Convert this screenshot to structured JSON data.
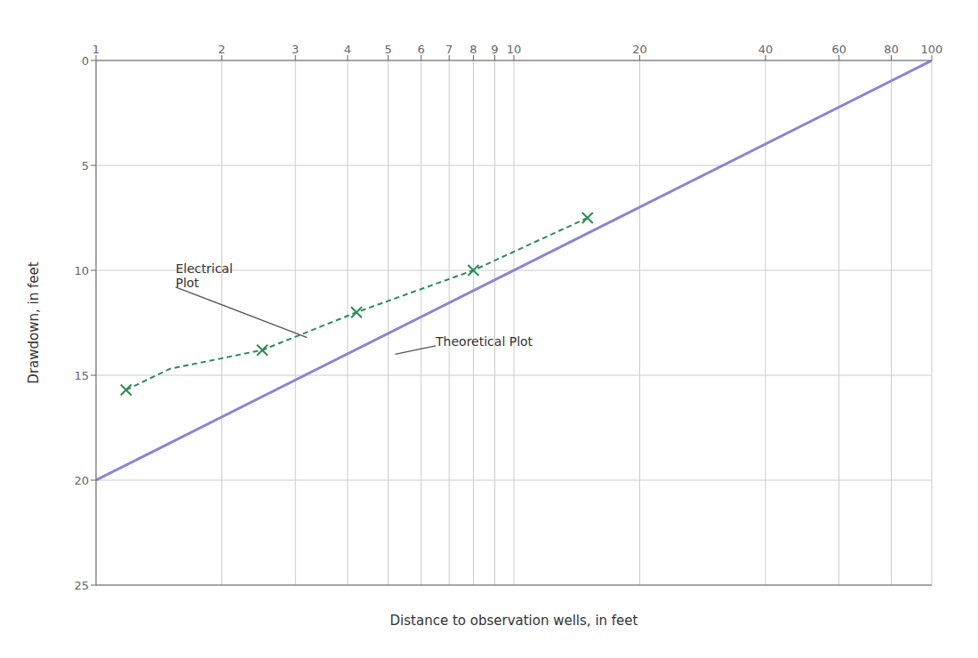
{
  "chart_data": {
    "type": "line",
    "xlabel": "Distance to observation wells, in feet",
    "ylabel": "Drawdown, in feet",
    "log": "x",
    "xlim": [
      1,
      100
    ],
    "ylim": [
      25,
      0
    ],
    "xticks": [
      1,
      2,
      3,
      4,
      5,
      6,
      7,
      8,
      9,
      10,
      20,
      40,
      60,
      80,
      100
    ],
    "yticks": [
      0,
      5,
      10,
      15,
      20,
      25
    ],
    "grid": true,
    "series": [
      {
        "type": "line",
        "line_style": "solid",
        "color": "#8884d8",
        "x": [
          1,
          100
        ],
        "values": [
          20,
          0
        ]
      },
      {
        "type": "line",
        "line_style": "dashed",
        "color": "#2e8b57",
        "x": [
          1.18,
          1.5,
          2.5,
          4.2,
          8.0,
          15.0
        ],
        "values": [
          15.7,
          14.7,
          13.8,
          12.0,
          10.0,
          7.5
        ]
      },
      {
        "type": "scatter",
        "marker": "x",
        "color": "#2e8b57",
        "x": [
          1.18,
          2.5,
          4.2,
          8.0,
          15.0
        ],
        "values": [
          15.7,
          13.8,
          12.0,
          10.0,
          7.5
        ]
      }
    ],
    "annotations": [
      {
        "text": "Electrical\nPlot",
        "x": 1.55,
        "y": 10.8,
        "arrow_x": 3.2,
        "arrow_y": 13.2
      },
      {
        "text": "Theoretical Plot",
        "x": 6.5,
        "y": 13.6,
        "arrow_x": 5.2,
        "arrow_y": 14.0
      }
    ]
  }
}
